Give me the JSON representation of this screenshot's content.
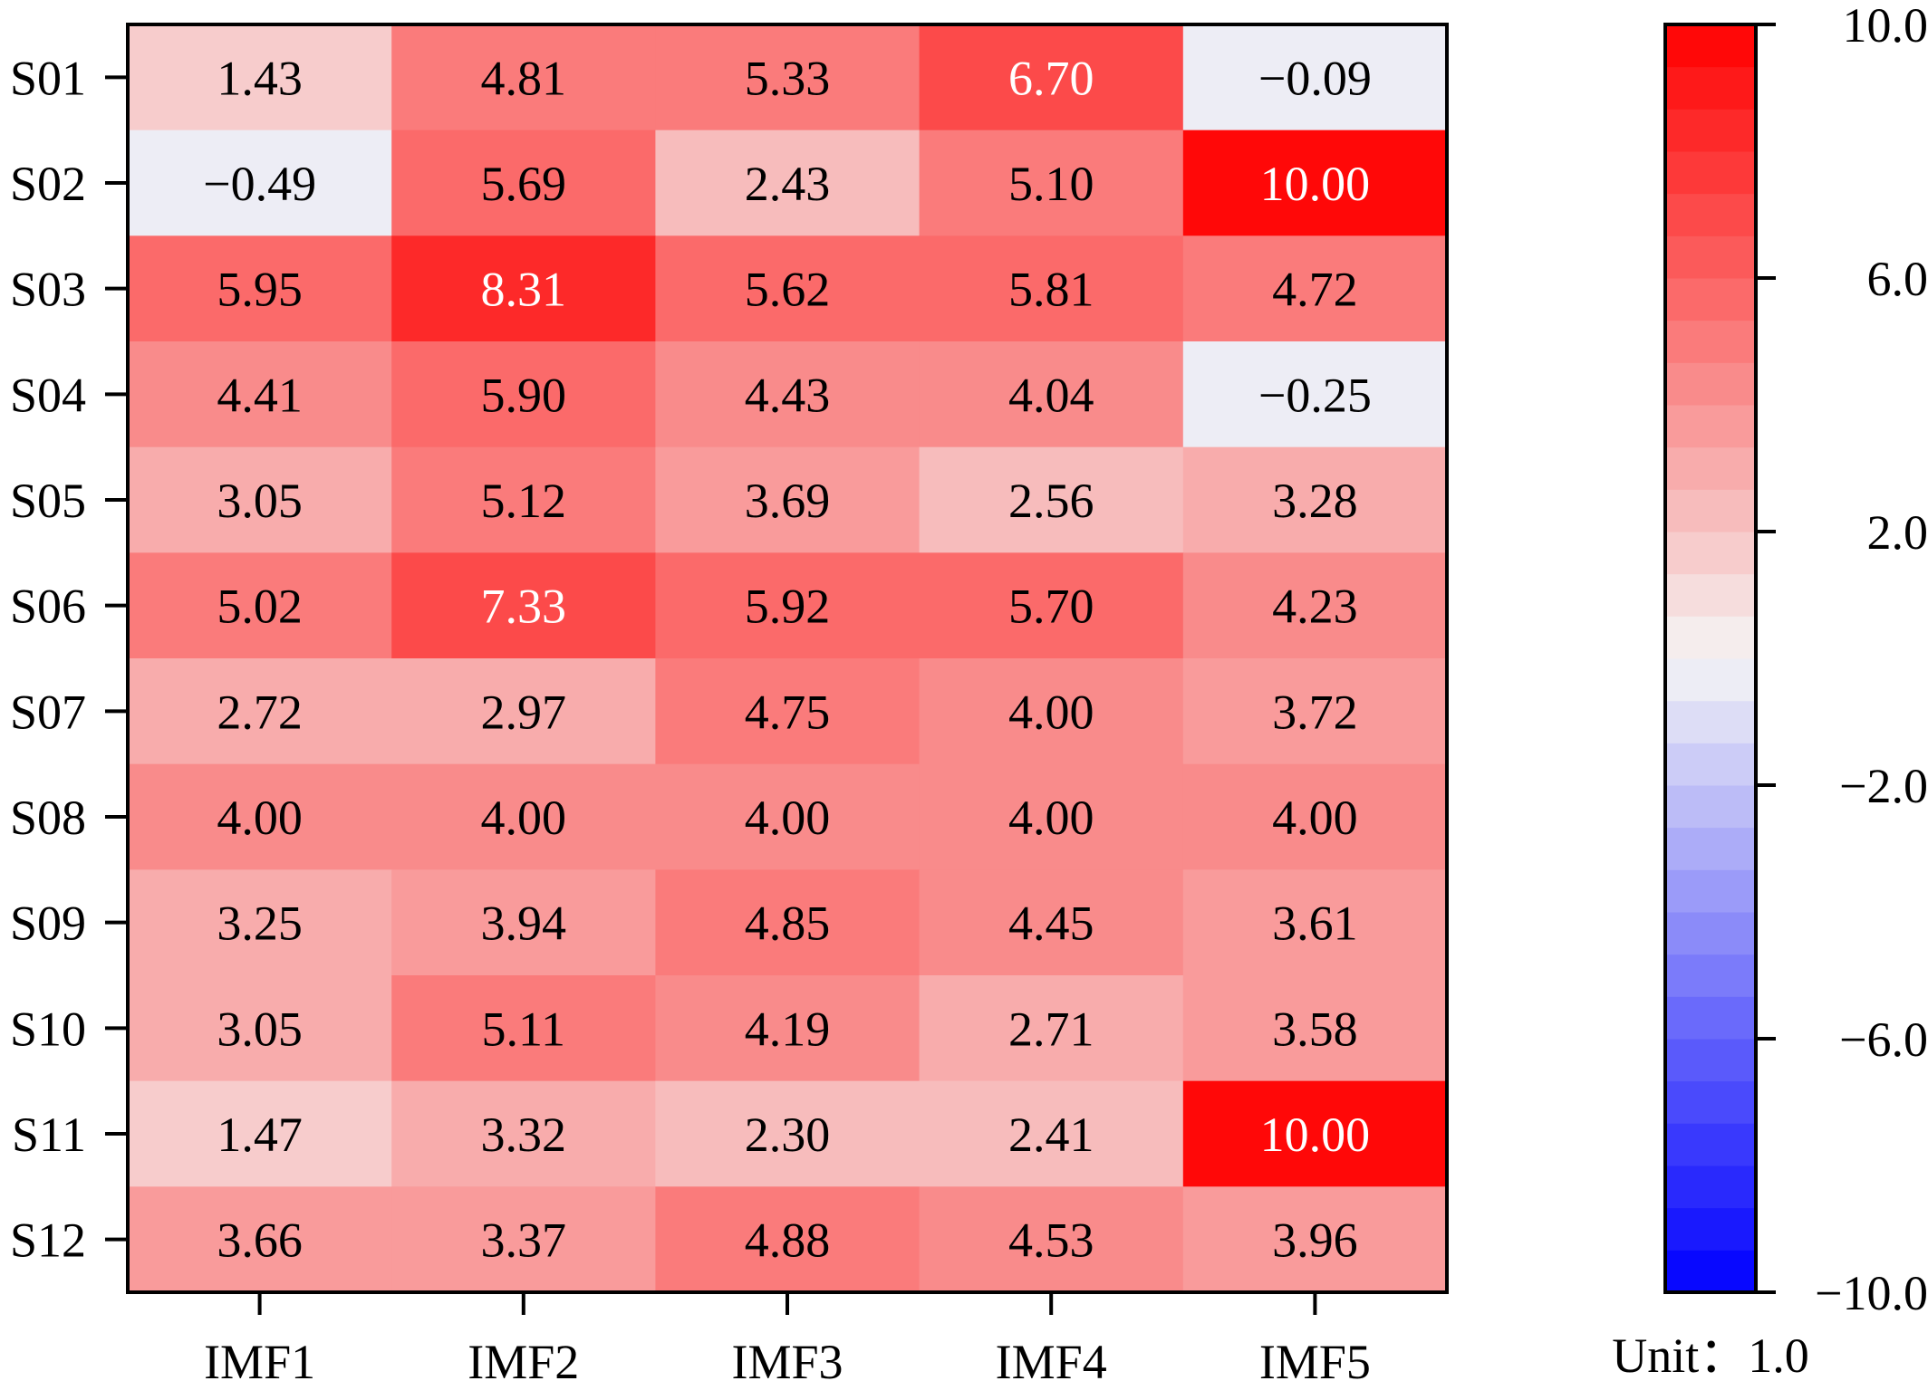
{
  "chart_data": {
    "type": "heatmap",
    "rows": [
      "S01",
      "S02",
      "S03",
      "S04",
      "S05",
      "S06",
      "S07",
      "S08",
      "S09",
      "S10",
      "S11",
      "S12"
    ],
    "columns": [
      "IMF1",
      "IMF2",
      "IMF3",
      "IMF4",
      "IMF5"
    ],
    "values": [
      [
        1.43,
        4.81,
        5.33,
        6.7,
        -0.09
      ],
      [
        -0.49,
        5.69,
        2.43,
        5.1,
        10.0
      ],
      [
        5.95,
        8.31,
        5.62,
        5.81,
        4.72
      ],
      [
        4.41,
        5.9,
        4.43,
        4.04,
        -0.25
      ],
      [
        3.05,
        5.12,
        3.69,
        2.56,
        3.28
      ],
      [
        5.02,
        7.33,
        5.92,
        5.7,
        4.23
      ],
      [
        2.72,
        2.97,
        4.75,
        4.0,
        3.72
      ],
      [
        4.0,
        4.0,
        4.0,
        4.0,
        4.0
      ],
      [
        3.25,
        3.94,
        4.85,
        4.45,
        3.61
      ],
      [
        3.05,
        5.11,
        4.19,
        2.71,
        3.58
      ],
      [
        1.47,
        3.32,
        2.3,
        2.41,
        10.0
      ],
      [
        3.66,
        3.37,
        4.88,
        4.53,
        3.96
      ]
    ],
    "cell_labels": [
      [
        "1.43",
        "4.81",
        "5.33",
        "6.70",
        "−0.09"
      ],
      [
        "−0.49",
        "5.69",
        "2.43",
        "5.10",
        "10.00"
      ],
      [
        "5.95",
        "8.31",
        "5.62",
        "5.81",
        "4.72"
      ],
      [
        "4.41",
        "5.90",
        "4.43",
        "4.04",
        "−0.25"
      ],
      [
        "3.05",
        "5.12",
        "3.69",
        "2.56",
        "3.28"
      ],
      [
        "5.02",
        "7.33",
        "5.92",
        "5.70",
        "4.23"
      ],
      [
        "2.72",
        "2.97",
        "4.75",
        "4.00",
        "3.72"
      ],
      [
        "4.00",
        "4.00",
        "4.00",
        "4.00",
        "4.00"
      ],
      [
        "3.25",
        "3.94",
        "4.85",
        "4.45",
        "3.61"
      ],
      [
        "3.05",
        "5.11",
        "4.19",
        "2.71",
        "3.58"
      ],
      [
        "1.47",
        "3.32",
        "2.30",
        "2.41",
        "10.00"
      ],
      [
        "3.66",
        "3.37",
        "4.88",
        "4.53",
        "3.96"
      ]
    ],
    "colorbar": {
      "range": [
        -10,
        10
      ],
      "steps": 30,
      "low_color": "#0000ff",
      "mid_color": "#f5f5f5",
      "high_color": "#ff0000",
      "ticks": [
        10,
        6,
        2,
        -2,
        -6,
        -10
      ],
      "tick_labels": [
        "10.0",
        "6.0",
        "2.0",
        "−2.0",
        "−6.0",
        "−10.0"
      ],
      "unit_label": "Unit：1.0"
    },
    "light_text_threshold": 6.5,
    "grid": false,
    "legend": "right"
  }
}
